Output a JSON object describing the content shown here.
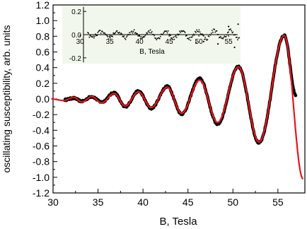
{
  "chart_data": [
    {
      "type": "scatter",
      "xlabel": "B, Tesla",
      "ylabel": "oscillating susceptibility, arb. units",
      "xlim": [
        30,
        58
      ],
      "ylim": [
        -1.2,
        1.2
      ],
      "x_ticks": [
        30,
        35,
        40,
        45,
        50,
        55
      ],
      "y_ticks": [
        -1.2,
        -1.0,
        -0.8,
        -0.6,
        -0.4,
        -0.2,
        0.0,
        0.2,
        0.4,
        0.6,
        0.8,
        1.0,
        1.2
      ],
      "grid": false,
      "series": [
        {
          "role": "measured points",
          "color": "#000000",
          "x_range": [
            31.3,
            57.0
          ],
          "extrema": [
            [
              31.3,
              -0.01
            ],
            [
              32.3,
              0.01
            ],
            [
              33.2,
              -0.03
            ],
            [
              34.3,
              0.03
            ],
            [
              35.4,
              -0.04
            ],
            [
              36.8,
              0.08
            ],
            [
              38.0,
              -0.1
            ],
            [
              39.5,
              0.1
            ],
            [
              40.9,
              -0.12
            ],
            [
              42.7,
              0.16
            ],
            [
              44.3,
              -0.19
            ],
            [
              46.3,
              0.26
            ],
            [
              48.3,
              -0.32
            ],
            [
              50.6,
              0.41
            ],
            [
              52.9,
              -0.56
            ],
            [
              55.7,
              0.81
            ],
            [
              57.0,
              0.05
            ]
          ]
        },
        {
          "role": "fit curve",
          "color": "#e8141c",
          "x_range": [
            29.8,
            57.8
          ],
          "extrema": [
            [
              29.8,
              0.0
            ],
            [
              31.2,
              -0.02
            ],
            [
              32.3,
              0.02
            ],
            [
              33.2,
              -0.04
            ],
            [
              34.3,
              0.03
            ],
            [
              35.4,
              -0.05
            ],
            [
              36.8,
              0.07
            ],
            [
              38.0,
              -0.09
            ],
            [
              39.5,
              0.09
            ],
            [
              40.9,
              -0.11
            ],
            [
              42.7,
              0.15
            ],
            [
              44.3,
              -0.18
            ],
            [
              46.3,
              0.24
            ],
            [
              48.3,
              -0.3
            ],
            [
              50.6,
              0.41
            ],
            [
              52.9,
              -0.55
            ],
            [
              55.7,
              0.81
            ],
            [
              57.8,
              -1.02
            ]
          ]
        }
      ]
    },
    {
      "type": "scatter",
      "role": "inset: residual",
      "xlabel": "B, Tesla",
      "xlim": [
        27,
        57
      ],
      "ylim": [
        -0.25,
        0.25
      ],
      "x_ticks": [
        30,
        35,
        40,
        45,
        50,
        55
      ],
      "y_ticks": [
        -0.2,
        0.0,
        0.2
      ],
      "background": "#f1f7ec",
      "series": [
        {
          "color": "#000000",
          "x_range": [
            31.3,
            56.8
          ],
          "amplitude": 0.04,
          "outliers": [
            [
              49.5,
              -0.07
            ],
            [
              50.8,
              -0.06
            ],
            [
              53.2,
              -0.08
            ],
            [
              55.0,
              0.07
            ],
            [
              56.0,
              -0.11
            ],
            [
              56.6,
              0.09
            ]
          ]
        }
      ]
    }
  ]
}
